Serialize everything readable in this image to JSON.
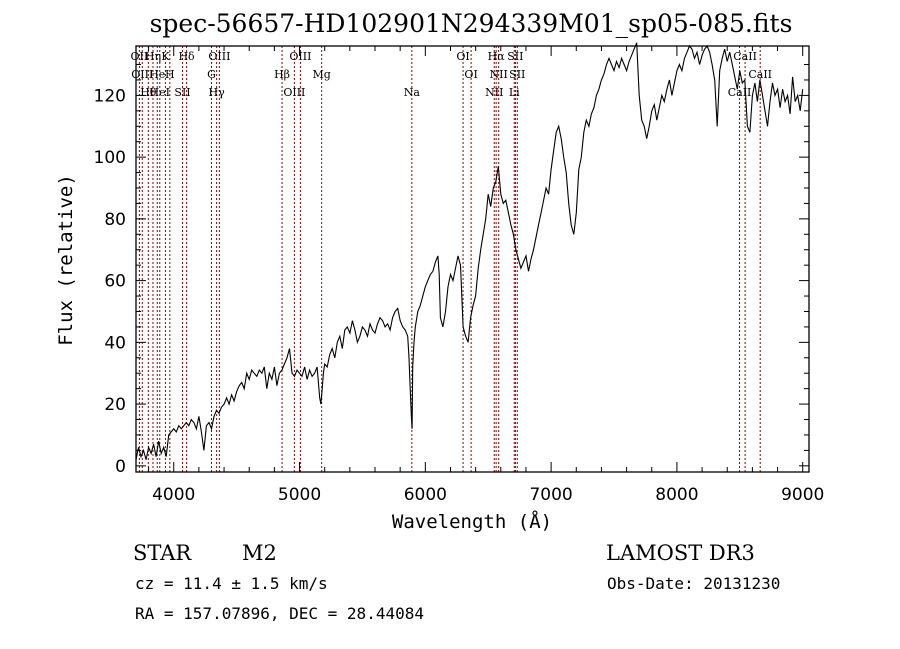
{
  "chart_data": {
    "type": "line",
    "title": "spec-56657-HD102901N294339M01_sp05-085.fits",
    "xlabel": "Wavelength (Å)",
    "ylabel": "Flux (relative)",
    "xlim": [
      3700,
      9050
    ],
    "ylim": [
      -2,
      136
    ],
    "xticks": [
      4000,
      5000,
      6000,
      7000,
      8000,
      9000
    ],
    "xtick_labels": [
      "4000",
      "5000",
      "6000",
      "7000",
      "8000",
      "9000"
    ],
    "yticks": [
      0,
      20,
      40,
      60,
      80,
      100,
      120
    ],
    "ytick_labels": [
      "0",
      "20",
      "40",
      "60",
      "80",
      "100",
      "120"
    ],
    "grid": false,
    "line_color": "#000000",
    "marker_color": "#8b0000",
    "series": [
      {
        "x": [
          3700,
          3720,
          3740,
          3760,
          3780,
          3800,
          3820,
          3840,
          3860,
          3880,
          3900,
          3920,
          3940,
          3960,
          3980,
          4000,
          4020,
          4040,
          4060,
          4080,
          4100,
          4120,
          4140,
          4160,
          4180,
          4200,
          4220,
          4240,
          4260,
          4280,
          4300,
          4320,
          4340,
          4360,
          4380,
          4400,
          4420,
          4440,
          4460,
          4480,
          4500,
          4520,
          4540,
          4560,
          4580,
          4600,
          4620,
          4640,
          4660,
          4680,
          4700,
          4720,
          4740,
          4760,
          4780,
          4800,
          4820,
          4840,
          4860,
          4880,
          4900,
          4920,
          4940,
          4960,
          4980,
          5000,
          5020,
          5040,
          5060,
          5080,
          5100,
          5120,
          5140,
          5160,
          5170,
          5180,
          5190,
          5200,
          5220,
          5240,
          5260,
          5280,
          5300,
          5320,
          5340,
          5360,
          5380,
          5400,
          5420,
          5440,
          5460,
          5480,
          5500,
          5520,
          5540,
          5560,
          5580,
          5600,
          5620,
          5640,
          5660,
          5680,
          5700,
          5720,
          5740,
          5760,
          5780,
          5800,
          5820,
          5840,
          5860,
          5870,
          5880,
          5890,
          5895,
          5900,
          5910,
          5920,
          5940,
          5960,
          5980,
          6000,
          6020,
          6040,
          6060,
          6080,
          6100,
          6110,
          6120,
          6140,
          6160,
          6180,
          6200,
          6220,
          6240,
          6260,
          6280,
          6300,
          6320,
          6340,
          6360,
          6380,
          6400,
          6420,
          6440,
          6460,
          6480,
          6500,
          6520,
          6540,
          6560,
          6580,
          6600,
          6620,
          6640,
          6660,
          6680,
          6700,
          6720,
          6740,
          6760,
          6780,
          6800,
          6820,
          6840,
          6860,
          6880,
          6900,
          6920,
          6940,
          6960,
          6980,
          7000,
          7020,
          7040,
          7060,
          7080,
          7100,
          7120,
          7140,
          7160,
          7180,
          7200,
          7220,
          7240,
          7260,
          7280,
          7300,
          7320,
          7340,
          7360,
          7380,
          7400,
          7420,
          7440,
          7460,
          7480,
          7500,
          7520,
          7540,
          7560,
          7580,
          7600,
          7620,
          7640,
          7660,
          7680,
          7700,
          7720,
          7740,
          7760,
          7780,
          7800,
          7820,
          7840,
          7860,
          7880,
          7900,
          7920,
          7940,
          7960,
          7980,
          8000,
          8020,
          8040,
          8060,
          8080,
          8100,
          8120,
          8140,
          8160,
          8180,
          8200,
          8220,
          8240,
          8260,
          8280,
          8300,
          8320,
          8340,
          8360,
          8380,
          8400,
          8420,
          8440,
          8460,
          8480,
          8500,
          8520,
          8540,
          8560,
          8580,
          8600,
          8620,
          8640,
          8660,
          8680,
          8700,
          8720,
          8740,
          8760,
          8780,
          8800,
          8820,
          8840,
          8860,
          8880,
          8900,
          8920,
          8940,
          8960,
          8980,
          9000
        ],
        "y": [
          2,
          6,
          3,
          5,
          2,
          6,
          4,
          7,
          3,
          8,
          4,
          6,
          3,
          10,
          11,
          12,
          11,
          13,
          12,
          13,
          14,
          13,
          15,
          14,
          12,
          16,
          11,
          5,
          13,
          14,
          12,
          16,
          18,
          17,
          19,
          20,
          22,
          20,
          23,
          21,
          24,
          26,
          27,
          25,
          30,
          28,
          31,
          30,
          29,
          31,
          30,
          32,
          25,
          30,
          28,
          32,
          26,
          30,
          31,
          33,
          35,
          38,
          30,
          29,
          31,
          30,
          29,
          32,
          28,
          31,
          29,
          30,
          32,
          22,
          20,
          25,
          30,
          33,
          32,
          36,
          38,
          35,
          40,
          42,
          38,
          44,
          45,
          43,
          47,
          44,
          40,
          42,
          45,
          44,
          42,
          46,
          44,
          43,
          46,
          48,
          47,
          45,
          46,
          44,
          48,
          50,
          51,
          47,
          45,
          44,
          42,
          35,
          25,
          15,
          12,
          32,
          40,
          45,
          50,
          52,
          55,
          58,
          60,
          62,
          63,
          66,
          68,
          62,
          48,
          45,
          50,
          58,
          62,
          60,
          64,
          68,
          65,
          45,
          42,
          40,
          48,
          52,
          55,
          64,
          70,
          75,
          80,
          88,
          84,
          90,
          92,
          97,
          88,
          85,
          86,
          82,
          78,
          75,
          70,
          67,
          64,
          66,
          68,
          63,
          67,
          70,
          74,
          78,
          82,
          86,
          90,
          88,
          96,
          102,
          108,
          110,
          106,
          100,
          95,
          85,
          78,
          75,
          82,
          96,
          100,
          108,
          112,
          110,
          114,
          116,
          120,
          122,
          125,
          127,
          130,
          132,
          130,
          128,
          131,
          129,
          132,
          130,
          128,
          131,
          133,
          135,
          137,
          120,
          112,
          110,
          106,
          110,
          115,
          117,
          112,
          116,
          120,
          118,
          122,
          125,
          120,
          124,
          128,
          130,
          128,
          132,
          134,
          136,
          135,
          132,
          134,
          130,
          133,
          135,
          136,
          134,
          130,
          125,
          110,
          128,
          132,
          135,
          131,
          134,
          130,
          126,
          122,
          128,
          124,
          125,
          110,
          108,
          120,
          124,
          118,
          125,
          120,
          115,
          110,
          118,
          124,
          120,
          122,
          116,
          122,
          118,
          120,
          114,
          126,
          118,
          120,
          115,
          122
        ]
      }
    ],
    "lines": [
      {
        "x": 3727,
        "label": "OII"
      },
      {
        "x": 3750,
        "label": "OIII"
      },
      {
        "x": 3798,
        "label": "Hθ"
      },
      {
        "x": 3835,
        "label": "Hη"
      },
      {
        "x": 3869,
        "label": "He"
      },
      {
        "x": 3889,
        "label": "HeI"
      },
      {
        "x": 3934,
        "label": "K"
      },
      {
        "x": 3969,
        "label": "H"
      },
      {
        "x": 4070,
        "label": "SII"
      },
      {
        "x": 4102,
        "label": "Hδ"
      },
      {
        "x": 4300,
        "label": "G"
      },
      {
        "x": 4341,
        "label": "Hγ"
      },
      {
        "x": 4363,
        "label": "OIII"
      },
      {
        "x": 4861,
        "label": "Hβ"
      },
      {
        "x": 4959,
        "label": "OIII"
      },
      {
        "x": 5007,
        "label": "OIII"
      },
      {
        "x": 5176,
        "label": "Mg"
      },
      {
        "x": 5893,
        "label": "Na"
      },
      {
        "x": 6300,
        "label": "OI"
      },
      {
        "x": 6364,
        "label": "OI"
      },
      {
        "x": 6548,
        "label": "NII"
      },
      {
        "x": 6563,
        "label": "Hα"
      },
      {
        "x": 6583,
        "label": "NII"
      },
      {
        "x": 6707,
        "label": "Li"
      },
      {
        "x": 6716,
        "label": "SII"
      },
      {
        "x": 6731,
        "label": "SII"
      },
      {
        "x": 8498,
        "label": "CaII"
      },
      {
        "x": 8542,
        "label": "CaII"
      },
      {
        "x": 8662,
        "label": "CaII"
      }
    ]
  },
  "info": {
    "object_class": "STAR",
    "subclass": "M2",
    "survey": "LAMOST DR3",
    "cz": "cz = 11.4 ± 1.5 km/s",
    "obs_date": "Obs-Date: 20131230",
    "coords": "RA = 157.07896, DEC =  28.44084"
  }
}
